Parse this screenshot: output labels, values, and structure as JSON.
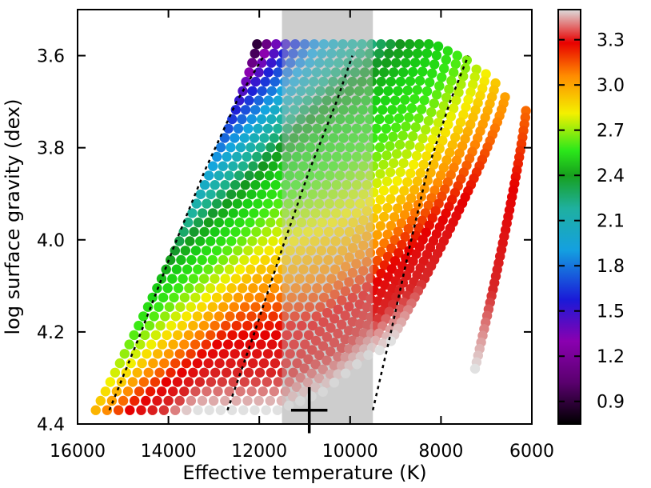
{
  "chart_data": {
    "type": "scatter",
    "title": "",
    "xlabel": "Effective temperature (K)",
    "ylabel": "log surface gravity (dex)",
    "xlim": [
      16000,
      6000
    ],
    "ylim": [
      4.4,
      3.5
    ],
    "x_reversed": true,
    "y_reversed": true,
    "xticks": [
      16000,
      14000,
      12000,
      10000,
      8000,
      6000
    ],
    "xtick_labels": [
      "16000",
      "14000",
      "12000",
      "10000",
      "8000",
      "6000"
    ],
    "yticks": [
      3.6,
      3.8,
      4.0,
      4.2,
      4.4
    ],
    "ytick_labels": [
      "3.6",
      "3.8",
      "4.0",
      "4.2",
      "4.4"
    ],
    "colorbar": {
      "range": [
        0.75,
        3.5
      ],
      "ticks": [
        0.9,
        1.2,
        1.5,
        1.8,
        2.1,
        2.4,
        2.7,
        3.0,
        3.3
      ],
      "tick_labels": [
        "0.9",
        "1.2",
        "1.5",
        "1.8",
        "2.1",
        "2.4",
        "2.7",
        "3.0",
        "3.3"
      ],
      "colormap": "black-purple-blue-cyan-green-yellow-orange-red-white"
    },
    "shaded_band": {
      "x_range": [
        11500,
        9500
      ],
      "color": "#bdbdbd"
    },
    "measurement": {
      "x": 10900,
      "y": 4.37,
      "x_err": 400,
      "y_err": 0.05
    },
    "tracks": {
      "count": 28,
      "points_per_track": 40,
      "top": {
        "y": [
          3.575,
          3.575,
          3.575,
          3.575,
          3.575,
          3.575,
          3.575,
          3.575,
          3.575,
          3.575,
          3.575,
          3.575,
          3.575,
          3.575,
          3.575,
          3.575,
          3.575,
          3.575,
          3.575,
          3.58,
          3.59,
          3.6,
          3.61,
          3.63,
          3.64,
          3.66,
          3.69,
          3.72
        ],
        "x": [
          12050,
          11840,
          11630,
          11420,
          11210,
          11000,
          10790,
          10580,
          10370,
          10160,
          9950,
          9740,
          9530,
          9320,
          9110,
          8900,
          8690,
          8480,
          8270,
          8060,
          7850,
          7640,
          7430,
          7220,
          7010,
          6800,
          6590,
          6130
        ]
      },
      "bottom": {
        "y": [
          4.37,
          4.37,
          4.37,
          4.37,
          4.37,
          4.37,
          4.37,
          4.37,
          4.37,
          4.37,
          4.37,
          4.37,
          4.37,
          4.37,
          4.37,
          4.37,
          4.37,
          4.36,
          4.35,
          4.34,
          4.33,
          4.31,
          4.29,
          4.27,
          4.25,
          4.24,
          4.22,
          4.28
        ],
        "x": [
          15600,
          15350,
          15100,
          14850,
          14600,
          14350,
          14100,
          13850,
          13600,
          13350,
          13100,
          12850,
          12600,
          12350,
          12100,
          11850,
          11600,
          11350,
          11100,
          10850,
          10600,
          10350,
          10100,
          9850,
          9600,
          9350,
          9100,
          7250
        ]
      },
      "color_top": [
        0.85,
        0.95,
        1.05,
        1.15,
        1.25,
        1.35,
        1.45,
        1.55,
        1.62,
        1.7,
        1.75,
        1.8,
        1.85,
        1.9,
        1.95,
        2.0,
        2.05,
        2.1,
        2.15,
        2.2,
        2.3,
        2.4,
        2.5,
        2.6,
        2.7,
        2.8,
        2.9,
        3.0
      ],
      "color_bottom": [
        2.85,
        2.95,
        3.05,
        3.15,
        3.22,
        3.3,
        3.36,
        3.42,
        3.48,
        3.5,
        3.5,
        3.5,
        3.5,
        3.5,
        3.5,
        3.5,
        3.5,
        3.5,
        3.5,
        3.5,
        3.5,
        3.5,
        3.5,
        3.5,
        3.5,
        3.5,
        3.5,
        3.5
      ]
    },
    "dotted_lines": [
      {
        "x": [
          15300,
          14600,
          13900,
          13200,
          12500,
          11900
        ],
        "y": [
          4.37,
          4.2,
          4.02,
          3.85,
          3.7,
          3.6
        ]
      },
      {
        "x": [
          12700,
          12100,
          11500,
          10900,
          10300,
          9950
        ],
        "y": [
          4.37,
          4.2,
          4.02,
          3.85,
          3.7,
          3.6
        ]
      },
      {
        "x": [
          9500,
          9100,
          8700,
          8300,
          7800,
          7400
        ],
        "y": [
          4.37,
          4.2,
          4.02,
          3.85,
          3.7,
          3.6
        ]
      }
    ]
  }
}
